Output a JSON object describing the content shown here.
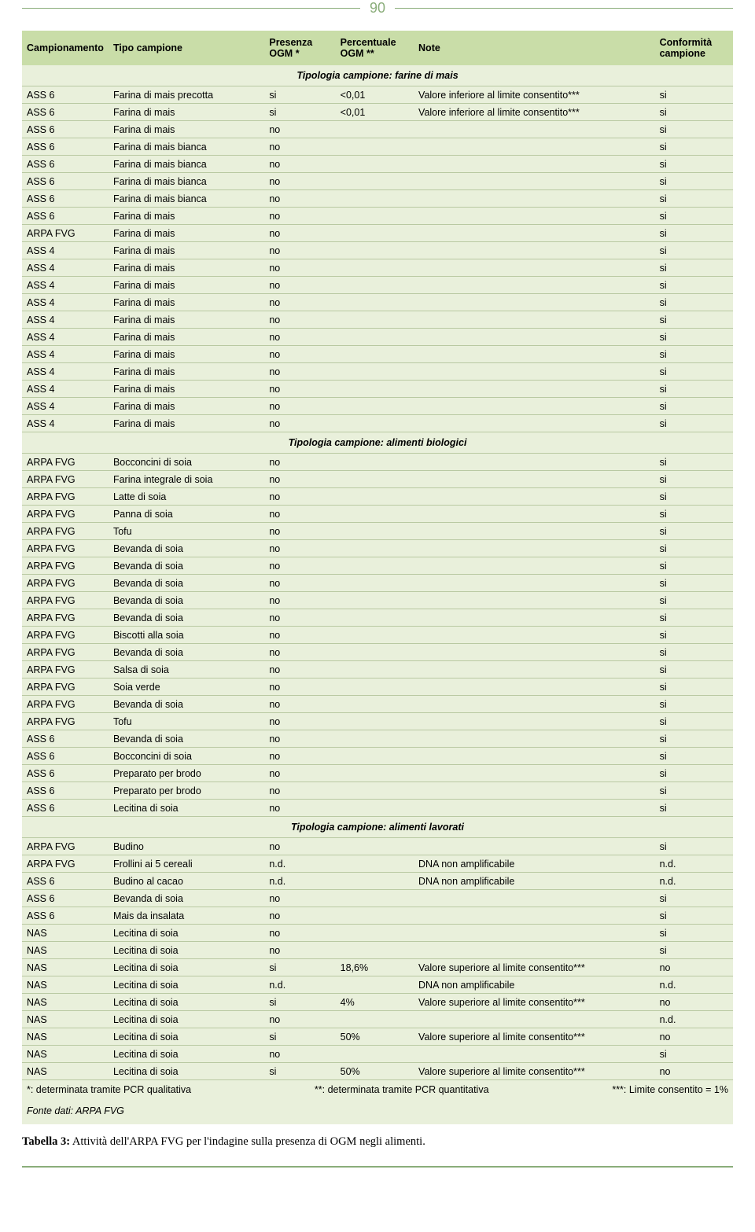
{
  "page_number": "90",
  "colors": {
    "header_bg": "#c9dda8",
    "body_bg": "#e9f0db",
    "row_border": "#b9c9a2",
    "accent": "#8aad7a"
  },
  "columns": [
    {
      "key": "camp",
      "label": "Campionamento"
    },
    {
      "key": "tipo",
      "label": "Tipo campione"
    },
    {
      "key": "pres",
      "label": "Presenza\nOGM *"
    },
    {
      "key": "perc",
      "label": "Percentuale\nOGM **"
    },
    {
      "key": "note",
      "label": "Note"
    },
    {
      "key": "conf",
      "label": "Conformità\ncampione"
    }
  ],
  "sections": [
    {
      "title": "Tipologia campione: farine di mais",
      "rows": [
        {
          "camp": "ASS 6",
          "tipo": "Farina di mais precotta",
          "pres": "si",
          "perc": "<0,01",
          "note": "Valore inferiore al limite consentito***",
          "conf": "si"
        },
        {
          "camp": "ASS 6",
          "tipo": "Farina di mais",
          "pres": "si",
          "perc": "<0,01",
          "note": "Valore inferiore al limite consentito***",
          "conf": "si"
        },
        {
          "camp": "ASS 6",
          "tipo": "Farina di mais",
          "pres": "no",
          "perc": "",
          "note": "",
          "conf": "si"
        },
        {
          "camp": "ASS 6",
          "tipo": "Farina di mais bianca",
          "pres": "no",
          "perc": "",
          "note": "",
          "conf": "si"
        },
        {
          "camp": "ASS 6",
          "tipo": "Farina di mais bianca",
          "pres": "no",
          "perc": "",
          "note": "",
          "conf": "si"
        },
        {
          "camp": "ASS 6",
          "tipo": "Farina di mais bianca",
          "pres": "no",
          "perc": "",
          "note": "",
          "conf": "si"
        },
        {
          "camp": "ASS 6",
          "tipo": "Farina di mais bianca",
          "pres": "no",
          "perc": "",
          "note": "",
          "conf": "si"
        },
        {
          "camp": "ASS 6",
          "tipo": "Farina di mais",
          "pres": "no",
          "perc": "",
          "note": "",
          "conf": "si"
        },
        {
          "camp": "ARPA FVG",
          "tipo": "Farina di mais",
          "pres": "no",
          "perc": "",
          "note": "",
          "conf": "si"
        },
        {
          "camp": "ASS 4",
          "tipo": "Farina di mais",
          "pres": "no",
          "perc": "",
          "note": "",
          "conf": "si"
        },
        {
          "camp": "ASS 4",
          "tipo": "Farina di mais",
          "pres": "no",
          "perc": "",
          "note": "",
          "conf": "si"
        },
        {
          "camp": "ASS 4",
          "tipo": "Farina di mais",
          "pres": "no",
          "perc": "",
          "note": "",
          "conf": "si"
        },
        {
          "camp": "ASS 4",
          "tipo": "Farina di mais",
          "pres": "no",
          "perc": "",
          "note": "",
          "conf": "si"
        },
        {
          "camp": "ASS 4",
          "tipo": "Farina di mais",
          "pres": "no",
          "perc": "",
          "note": "",
          "conf": "si"
        },
        {
          "camp": "ASS 4",
          "tipo": "Farina di mais",
          "pres": "no",
          "perc": "",
          "note": "",
          "conf": "si"
        },
        {
          "camp": "ASS 4",
          "tipo": "Farina di mais",
          "pres": "no",
          "perc": "",
          "note": "",
          "conf": "si"
        },
        {
          "camp": "ASS 4",
          "tipo": "Farina di mais",
          "pres": "no",
          "perc": "",
          "note": "",
          "conf": "si"
        },
        {
          "camp": "ASS 4",
          "tipo": "Farina di mais",
          "pres": "no",
          "perc": "",
          "note": "",
          "conf": "si"
        },
        {
          "camp": "ASS 4",
          "tipo": "Farina di mais",
          "pres": "no",
          "perc": "",
          "note": "",
          "conf": "si"
        },
        {
          "camp": "ASS 4",
          "tipo": "Farina di mais",
          "pres": "no",
          "perc": "",
          "note": "",
          "conf": "si"
        }
      ]
    },
    {
      "title": "Tipologia campione: alimenti biologici",
      "rows": [
        {
          "camp": "ARPA FVG",
          "tipo": "Bocconcini di soia",
          "pres": "no",
          "perc": "",
          "note": "",
          "conf": "si"
        },
        {
          "camp": "ARPA FVG",
          "tipo": "Farina integrale di soia",
          "pres": "no",
          "perc": "",
          "note": "",
          "conf": "si"
        },
        {
          "camp": "ARPA FVG",
          "tipo": "Latte di soia",
          "pres": "no",
          "perc": "",
          "note": "",
          "conf": "si"
        },
        {
          "camp": "ARPA FVG",
          "tipo": "Panna di soia",
          "pres": "no",
          "perc": "",
          "note": "",
          "conf": "si"
        },
        {
          "camp": "ARPA FVG",
          "tipo": "Tofu",
          "pres": "no",
          "perc": "",
          "note": "",
          "conf": "si"
        },
        {
          "camp": "ARPA FVG",
          "tipo": "Bevanda di soia",
          "pres": "no",
          "perc": "",
          "note": "",
          "conf": "si"
        },
        {
          "camp": "ARPA FVG",
          "tipo": "Bevanda di soia",
          "pres": "no",
          "perc": "",
          "note": "",
          "conf": "si"
        },
        {
          "camp": "ARPA FVG",
          "tipo": "Bevanda di soia",
          "pres": "no",
          "perc": "",
          "note": "",
          "conf": "si"
        },
        {
          "camp": "ARPA FVG",
          "tipo": "Bevanda di soia",
          "pres": "no",
          "perc": "",
          "note": "",
          "conf": "si"
        },
        {
          "camp": "ARPA FVG",
          "tipo": "Bevanda di soia",
          "pres": "no",
          "perc": "",
          "note": "",
          "conf": "si"
        },
        {
          "camp": "ARPA FVG",
          "tipo": "Biscotti alla soia",
          "pres": "no",
          "perc": "",
          "note": "",
          "conf": "si"
        },
        {
          "camp": "ARPA FVG",
          "tipo": "Bevanda di soia",
          "pres": "no",
          "perc": "",
          "note": "",
          "conf": "si"
        },
        {
          "camp": "ARPA FVG",
          "tipo": "Salsa di soia",
          "pres": "no",
          "perc": "",
          "note": "",
          "conf": "si"
        },
        {
          "camp": "ARPA FVG",
          "tipo": "Soia verde",
          "pres": "no",
          "perc": "",
          "note": "",
          "conf": "si"
        },
        {
          "camp": "ARPA FVG",
          "tipo": "Bevanda di soia",
          "pres": "no",
          "perc": "",
          "note": "",
          "conf": "si"
        },
        {
          "camp": "ARPA FVG",
          "tipo": "Tofu",
          "pres": "no",
          "perc": "",
          "note": "",
          "conf": "si"
        },
        {
          "camp": "ASS 6",
          "tipo": "Bevanda di soia",
          "pres": "no",
          "perc": "",
          "note": "",
          "conf": "si"
        },
        {
          "camp": "ASS 6",
          "tipo": "Bocconcini di soia",
          "pres": "no",
          "perc": "",
          "note": "",
          "conf": "si"
        },
        {
          "camp": "ASS 6",
          "tipo": "Preparato per brodo",
          "pres": "no",
          "perc": "",
          "note": "",
          "conf": "si"
        },
        {
          "camp": "ASS 6",
          "tipo": "Preparato per brodo",
          "pres": "no",
          "perc": "",
          "note": "",
          "conf": "si"
        },
        {
          "camp": "ASS 6",
          "tipo": "Lecitina di soia",
          "pres": "no",
          "perc": "",
          "note": "",
          "conf": "si"
        }
      ]
    },
    {
      "title": "Tipologia campione: alimenti lavorati",
      "rows": [
        {
          "camp": "ARPA FVG",
          "tipo": "Budino",
          "pres": "no",
          "perc": "",
          "note": "",
          "conf": "si"
        },
        {
          "camp": "ARPA FVG",
          "tipo": "Frollini ai 5 cereali",
          "pres": "n.d.",
          "perc": "",
          "note": "DNA non amplificabile",
          "conf": "n.d."
        },
        {
          "camp": "ASS 6",
          "tipo": "Budino al cacao",
          "pres": "n.d.",
          "perc": "",
          "note": "DNA non amplificabile",
          "conf": "n.d."
        },
        {
          "camp": "ASS 6",
          "tipo": "Bevanda di soia",
          "pres": "no",
          "perc": "",
          "note": "",
          "conf": "si"
        },
        {
          "camp": "ASS 6",
          "tipo": "Mais da insalata",
          "pres": "no",
          "perc": "",
          "note": "",
          "conf": "si"
        },
        {
          "camp": "NAS",
          "tipo": "Lecitina di soia",
          "pres": "no",
          "perc": "",
          "note": "",
          "conf": "si"
        },
        {
          "camp": "NAS",
          "tipo": "Lecitina di soia",
          "pres": "no",
          "perc": "",
          "note": "",
          "conf": "si"
        },
        {
          "camp": "NAS",
          "tipo": "Lecitina di soia",
          "pres": "si",
          "perc": "18,6%",
          "note": "Valore superiore al limite consentito***",
          "conf": "no"
        },
        {
          "camp": "NAS",
          "tipo": "Lecitina di soia",
          "pres": "n.d.",
          "perc": "",
          "note": "DNA non amplificabile",
          "conf": "n.d."
        },
        {
          "camp": "NAS",
          "tipo": "Lecitina di soia",
          "pres": "si",
          "perc": "4%",
          "note": "Valore superiore al limite consentito***",
          "conf": "no"
        },
        {
          "camp": "NAS",
          "tipo": "Lecitina di soia",
          "pres": "no",
          "perc": "",
          "note": "",
          "conf": "n.d."
        },
        {
          "camp": "NAS",
          "tipo": "Lecitina di soia",
          "pres": "si",
          "perc": "50%",
          "note": "Valore superiore al limite consentito***",
          "conf": "no"
        },
        {
          "camp": "NAS",
          "tipo": "Lecitina di soia",
          "pres": "no",
          "perc": "",
          "note": "",
          "conf": "si"
        },
        {
          "camp": "NAS",
          "tipo": "Lecitina di soia",
          "pres": "si",
          "perc": "50%",
          "note": "Valore superiore al limite consentito***",
          "conf": "no"
        }
      ]
    }
  ],
  "footnotes": {
    "f1": "*: determinata tramite PCR qualitativa",
    "f2": "**: determinata tramite PCR quantitativa",
    "f3": "***: Limite consentito = 1%"
  },
  "source": "Fonte dati: ARPA FVG",
  "caption_bold": "Tabella 3:",
  "caption_rest": " Attività dell'ARPA FVG per l'indagine sulla presenza di OGM negli alimenti."
}
